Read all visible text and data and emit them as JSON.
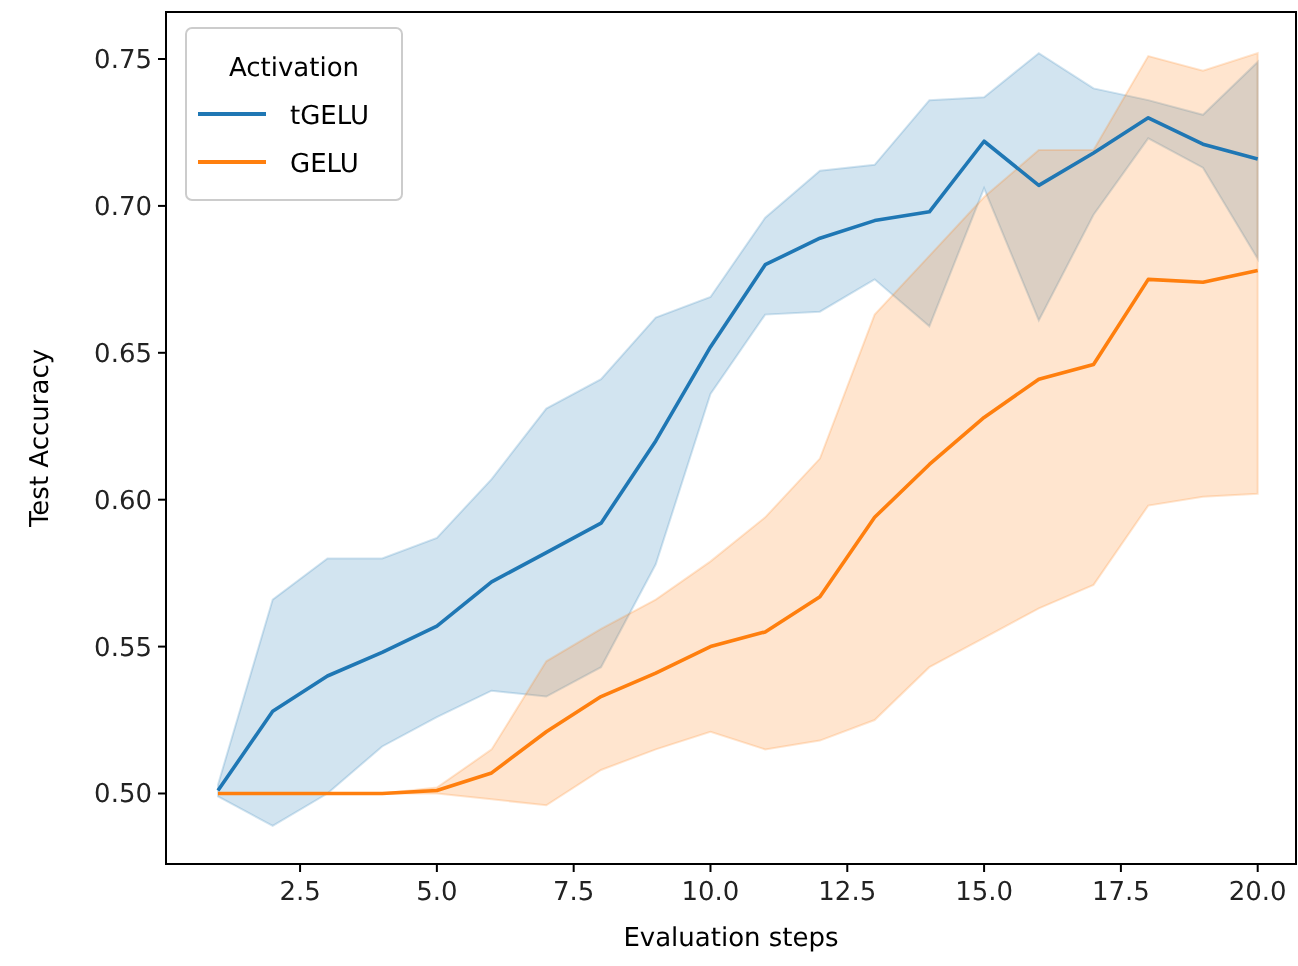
{
  "chart_data": {
    "type": "line",
    "xlabel": "Evaluation steps",
    "ylabel": "Test Accuracy",
    "legend_title": "Activation",
    "legend": "top left",
    "grid": false,
    "x": [
      1,
      2,
      3,
      4,
      5,
      6,
      7,
      8,
      9,
      10,
      11,
      12,
      13,
      14,
      15,
      16,
      17,
      18,
      19,
      20
    ],
    "xlim": [
      0.05,
      20.7
    ],
    "xticks": [
      {
        "value": 2.5,
        "label": "2.5"
      },
      {
        "value": 5,
        "label": "5.0"
      },
      {
        "value": 7.5,
        "label": "7.5"
      },
      {
        "value": 10,
        "label": "10.0"
      },
      {
        "value": 12.5,
        "label": "12.5"
      },
      {
        "value": 15,
        "label": "15.0"
      },
      {
        "value": 17.5,
        "label": "17.5"
      },
      {
        "value": 20,
        "label": "20.0"
      }
    ],
    "ylim": [
      0.476,
      0.766
    ],
    "yticks": [
      {
        "value": 0.5,
        "label": "0.50"
      },
      {
        "value": 0.55,
        "label": "0.55"
      },
      {
        "value": 0.6,
        "label": "0.60"
      },
      {
        "value": 0.65,
        "label": "0.65"
      },
      {
        "value": 0.7,
        "label": "0.70"
      },
      {
        "value": 0.75,
        "label": "0.75"
      }
    ],
    "series": [
      {
        "name": "tGELU",
        "color": "#1f77b4",
        "values": [
          0.501,
          0.528,
          0.54,
          0.548,
          0.557,
          0.572,
          0.582,
          0.592,
          0.62,
          0.652,
          0.68,
          0.689,
          0.695,
          0.698,
          0.722,
          0.707,
          0.718,
          0.73,
          0.721,
          0.716
        ],
        "lower": [
          0.499,
          0.489,
          0.5,
          0.516,
          0.526,
          0.535,
          0.533,
          0.543,
          0.578,
          0.636,
          0.663,
          0.664,
          0.675,
          0.659,
          0.706,
          0.661,
          0.697,
          0.723,
          0.713,
          0.682
        ],
        "upper": [
          0.503,
          0.566,
          0.58,
          0.58,
          0.587,
          0.607,
          0.631,
          0.641,
          0.662,
          0.669,
          0.696,
          0.712,
          0.714,
          0.736,
          0.737,
          0.752,
          0.74,
          0.736,
          0.731,
          0.749
        ]
      },
      {
        "name": "GELU",
        "color": "#ff7f0e",
        "values": [
          0.5,
          0.5,
          0.5,
          0.5,
          0.501,
          0.507,
          0.521,
          0.533,
          0.541,
          0.55,
          0.555,
          0.567,
          0.594,
          0.612,
          0.628,
          0.641,
          0.646,
          0.675,
          0.674,
          0.678
        ],
        "lower": [
          0.5,
          0.5,
          0.5,
          0.5,
          0.5,
          0.498,
          0.496,
          0.508,
          0.515,
          0.521,
          0.515,
          0.518,
          0.525,
          0.543,
          0.553,
          0.563,
          0.571,
          0.598,
          0.601,
          0.602
        ],
        "upper": [
          0.5,
          0.5,
          0.5,
          0.5,
          0.502,
          0.515,
          0.545,
          0.556,
          0.566,
          0.579,
          0.594,
          0.614,
          0.663,
          0.683,
          0.703,
          0.719,
          0.719,
          0.751,
          0.746,
          0.752
        ]
      }
    ]
  }
}
